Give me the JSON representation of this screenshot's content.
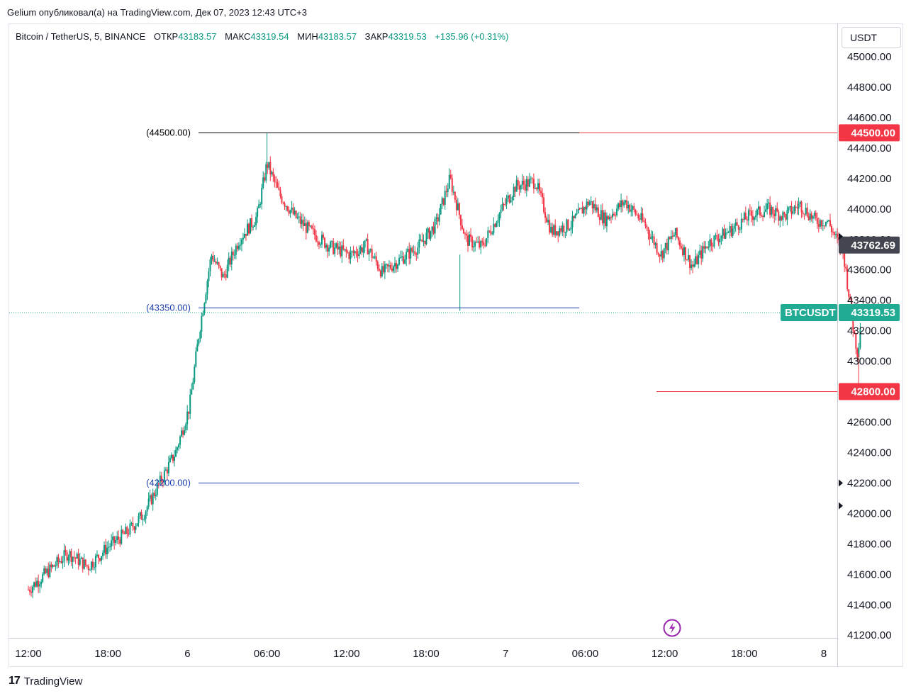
{
  "header": {
    "published_by": "Gelium опубликовал(а) на TradingView.com, Дек 07, 2023 12:43 UTC+3"
  },
  "legend": {
    "symbol": "Bitcoin / TetherUS, 5, BINANCE",
    "open_label": "ОТКР",
    "open_value": "43183.57",
    "high_label": "МАКС",
    "high_value": "43319.54",
    "low_label": "МИН",
    "low_value": "43183.57",
    "close_label": "ЗАКР",
    "close_value": "43319.53",
    "change": "+135.96 (+0.31%)"
  },
  "price_axis": {
    "unit": "USDT",
    "ticks": [
      "45000.00",
      "44800.00",
      "44600.00",
      "44400.00",
      "44200.00",
      "44000.00",
      "43800.00",
      "43600.00",
      "43400.00",
      "43200.00",
      "43000.00",
      "42800.00",
      "42600.00",
      "42400.00",
      "42200.00",
      "42000.00",
      "41800.00",
      "41600.00",
      "41400.00",
      "41200.00"
    ]
  },
  "time_axis": {
    "ticks": [
      "12:00",
      "18:00",
      "6",
      "06:00",
      "12:00",
      "18:00",
      "7",
      "06:00",
      "12:00",
      "18:00",
      "8"
    ]
  },
  "chart_data": {
    "type": "candlestick",
    "symbol": "BTCUSDT",
    "interval": "5",
    "exchange": "BINANCE",
    "ylim": [
      41150,
      45150
    ],
    "x_ticks": [
      "12:00",
      "18:00",
      "6",
      "06:00",
      "12:00",
      "18:00",
      "7",
      "06:00",
      "12:00",
      "18:00",
      "8"
    ],
    "price_path": [
      [
        0,
        41500
      ],
      [
        1.0,
        41620
      ],
      [
        2.0,
        41740
      ],
      [
        3.0,
        41650
      ],
      [
        4.0,
        41780
      ],
      [
        5.0,
        41880
      ],
      [
        5.8,
        42000
      ],
      [
        6.6,
        42200
      ],
      [
        7.4,
        42400
      ],
      [
        8.1,
        42700
      ],
      [
        8.6,
        43200
      ],
      [
        9.2,
        43700
      ],
      [
        9.8,
        43550
      ],
      [
        10.6,
        43800
      ],
      [
        11.5,
        43950
      ],
      [
        12.0,
        44300
      ],
      [
        12.6,
        44100
      ],
      [
        13.4,
        43950
      ],
      [
        14.2,
        43850
      ],
      [
        15.2,
        43750
      ],
      [
        16.2,
        43700
      ],
      [
        17.0,
        43760
      ],
      [
        17.8,
        43580
      ],
      [
        18.6,
        43660
      ],
      [
        19.6,
        43750
      ],
      [
        20.5,
        43900
      ],
      [
        21.2,
        44200
      ],
      [
        22.0,
        43800
      ],
      [
        22.8,
        43750
      ],
      [
        23.6,
        43950
      ],
      [
        24.5,
        44150
      ],
      [
        25.5,
        44180
      ],
      [
        26.3,
        43850
      ],
      [
        27.3,
        43900
      ],
      [
        28.2,
        44050
      ],
      [
        29.0,
        43930
      ],
      [
        30.0,
        44050
      ],
      [
        31.0,
        43900
      ],
      [
        31.8,
        43700
      ],
      [
        32.5,
        43840
      ],
      [
        33.4,
        43620
      ],
      [
        34.2,
        43780
      ],
      [
        35.2,
        43850
      ],
      [
        36.2,
        43950
      ],
      [
        37.2,
        44000
      ],
      [
        38.0,
        43950
      ],
      [
        38.8,
        44030
      ],
      [
        39.6,
        43920
      ],
      [
        40.2,
        43920
      ],
      [
        41.0,
        43700
      ],
      [
        41.5,
        43200
      ],
      [
        41.7,
        43050
      ],
      [
        41.9,
        43319.53
      ]
    ],
    "series": [
      {
        "name": "",
        "values": "candles reconstructed from price_path"
      }
    ],
    "horizontal_levels": [
      {
        "label": "(44500.00)",
        "value": 44500,
        "color": "#000000"
      },
      {
        "label": "(43350.00)",
        "value": 43350,
        "color": "#1e40af"
      },
      {
        "label": "(42200.00)",
        "value": 42200,
        "color": "#1e40af"
      }
    ],
    "price_badges": [
      {
        "text": "44500.00",
        "value": 44500,
        "color": "#f23645"
      },
      {
        "text": "43762.69",
        "value": 43762.69,
        "color": "#434651"
      },
      {
        "text": "43319.53",
        "value": 43319.53,
        "color": "#22ab94",
        "label": "BTCUSDT"
      },
      {
        "text": "42800.00",
        "value": 42800,
        "color": "#f23645"
      }
    ],
    "current_price": 43319.53,
    "grid": false
  },
  "colors": {
    "up": "#089981",
    "down": "#f23645",
    "level_black": "#000000",
    "level_blue": "#1e40af",
    "alert_red": "#f23645",
    "badge_gray": "#434651",
    "badge_teal": "#22ab94",
    "lightning": "#9c27b0"
  },
  "footer": {
    "brand": "TradingView"
  }
}
